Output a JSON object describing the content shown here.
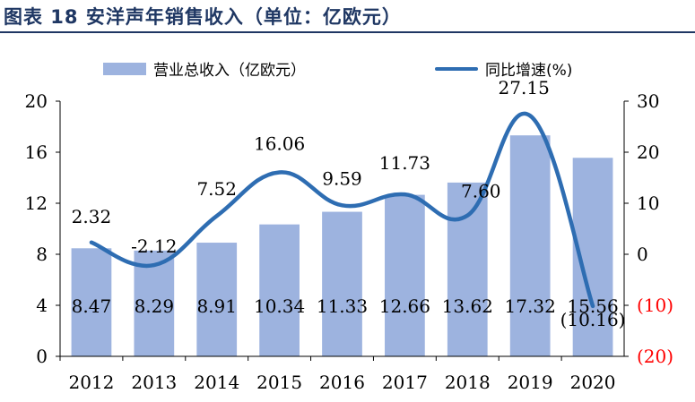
{
  "figure": {
    "title": "图表 18 安洋声年销售收入（单位：亿欧元）"
  },
  "colors": {
    "title": "#1f3763",
    "bar": "#9db3df",
    "line": "#2e6db2",
    "negative_tick": "#ff0000",
    "axis": "#000000"
  },
  "legend": {
    "bar_label": "营业总收入（亿欧元）",
    "line_label": "同比增速(%)",
    "placement": "top"
  },
  "chart_data": {
    "type": "bar",
    "categories": [
      "2012",
      "2013",
      "2014",
      "2015",
      "2016",
      "2017",
      "2018",
      "2019",
      "2020"
    ],
    "series": [
      {
        "name": "营业总收入（亿欧元）",
        "type": "bar",
        "axis": "left",
        "values": [
          8.47,
          8.29,
          8.91,
          10.34,
          11.33,
          12.66,
          13.62,
          17.32,
          15.56
        ],
        "labels": [
          "8.47",
          "8.29",
          "8.91",
          "10.34",
          "11.33",
          "12.66",
          "13.62",
          "17.32",
          "15.56"
        ]
      },
      {
        "name": "同比增速(%)",
        "type": "line",
        "axis": "right",
        "smooth": true,
        "values": [
          2.32,
          -2.12,
          7.52,
          16.06,
          9.59,
          11.73,
          7.6,
          27.15,
          -10.16
        ],
        "labels": [
          "2.32",
          "-2.12",
          "7.52",
          "16.06",
          "9.59",
          "11.73",
          "7.60",
          "27.15",
          "(10.16)"
        ]
      }
    ],
    "y_left": {
      "min": 0,
      "max": 20,
      "ticks": [
        "0",
        "4",
        "8",
        "12",
        "16",
        "20"
      ]
    },
    "y_right": {
      "min": -20,
      "max": 30,
      "ticks": [
        "(20)",
        "(10)",
        "0",
        "10",
        "20",
        "30"
      ]
    },
    "grid": false
  }
}
